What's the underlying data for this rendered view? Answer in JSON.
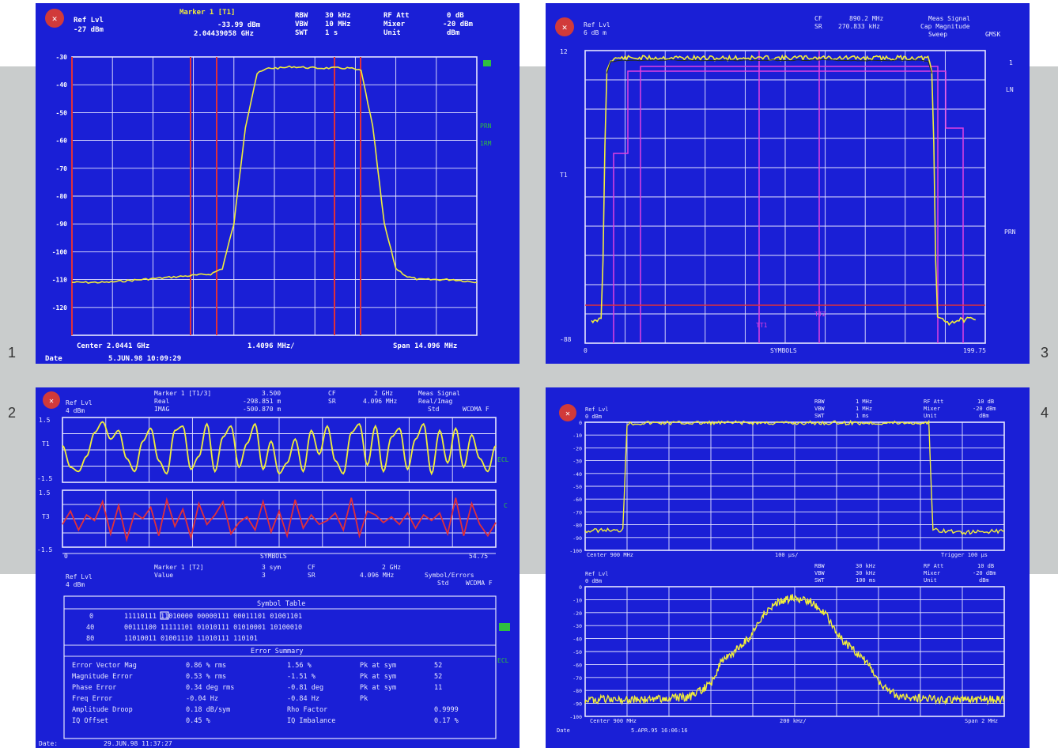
{
  "figure_numbers": [
    "1",
    "3",
    "2",
    "4"
  ],
  "colors": {
    "screen_bg": "#1a1fd6",
    "grid": "#e6e6ff",
    "trace_yellow": "#f2ee3a",
    "trace_red": "#e0303a",
    "trace_magenta": "#e040e0",
    "mark_green": "#2fbf3f"
  },
  "chart_data": [
    {
      "id": "screen1",
      "type": "line",
      "header": {
        "ref_lbl": "Ref Lvl",
        "ref_val": "-27 dBm",
        "marker_title": "Marker 1 [T1]",
        "marker_val1": "-33.99 dBm",
        "marker_val2": "2.04439058 GHz",
        "k1": "RBW",
        "v1": "30 kHz",
        "k2": "VBW",
        "v2": "10 MHz",
        "k3": "SWT",
        "v3": "1 s",
        "k4": "RF Att",
        "v4": "0 dB",
        "k5": "Mixer",
        "v5": "-20 dBm",
        "k6": "Unit",
        "v6": "dBm"
      },
      "yticks": [
        "-30",
        "-40",
        "-50",
        "-60",
        "-70",
        "-80",
        "-90",
        "-100",
        "-110",
        "-120"
      ],
      "ylim": [
        -130,
        -30
      ],
      "right_labels": [
        "PRN",
        "1RM"
      ],
      "footer": {
        "center": "Center 2.0441 GHz",
        "div": "1.4096 MHz/",
        "span": "Span 14.096 MHz",
        "date_lbl": "Date",
        "date_val": "5.JUN.98 10:09:29"
      },
      "x": [
        0,
        0.9,
        1.8,
        2.7,
        3.6,
        3.9,
        4.2,
        4.5,
        4.8,
        5.1,
        5.4,
        5.7,
        6.3,
        6.9,
        7.2,
        7.5,
        7.8,
        8.1,
        8.4,
        8.7,
        9.0,
        9.3,
        9.9,
        10.5
      ],
      "values": [
        -111,
        -111,
        -110,
        -109,
        -108,
        -106,
        -90,
        -55,
        -36,
        -34,
        -34,
        -33.5,
        -34,
        -34,
        -34,
        -35,
        -55,
        -90,
        -106,
        -109,
        -110,
        -110,
        -110,
        -111
      ]
    },
    {
      "id": "screen3",
      "type": "line",
      "header": {
        "ref_lbl": "Ref Lvl",
        "ref_val": "6 dB m",
        "cf_lbl": "CF",
        "cf_val": "890.2 MHz",
        "sr_lbl": "SR",
        "sr_val": "270.833 kHz",
        "r1": "Meas Signal",
        "r2": "Cap Magnitude",
        "r3": "Sweep",
        "mode": "GMSK"
      },
      "y_top": "12",
      "y_mid": "T1",
      "y_bottom": "-88",
      "right_labels": [
        "1",
        "LN",
        "PRN"
      ],
      "t_labels": [
        "TT1",
        "TT2"
      ],
      "footer": {
        "x_start": "0",
        "x_label": "SYMBOLS",
        "x_end": "199.75"
      },
      "x": [
        0,
        3,
        4,
        5,
        6,
        7,
        8,
        10,
        15,
        25,
        40,
        60,
        80,
        100,
        120,
        140,
        160,
        170,
        175,
        177,
        178,
        179,
        180,
        186,
        192,
        199.75
      ],
      "values": [
        -80,
        -81,
        -79,
        -80,
        -60,
        -20,
        5,
        9,
        9.5,
        9.5,
        9.6,
        9.4,
        9.5,
        9.5,
        9.6,
        9.4,
        9.5,
        9.5,
        9.3,
        5,
        -20,
        -60,
        -79,
        -81,
        -80,
        -80
      ]
    },
    {
      "id": "screen2",
      "type": "line",
      "header": {
        "ref_lbl": "Ref Lvl",
        "ref_val": "4 dBm",
        "marker_title": "Marker 1 [T1/3]",
        "m_row2": "Real",
        "m_row3": "IMAG",
        "m_val1": "3.500",
        "m_val2": "-298.851 m",
        "m_val3": "-500.870 m",
        "cf_lbl": "CF",
        "cf_val": "2 GHz",
        "sr_lbl": "SR",
        "sr_val": "4.096 MHz",
        "r1": "Meas Signal",
        "r2": "Real/Imag",
        "r3": "Std",
        "r4": "WCDMA F"
      },
      "top_ticks": [
        "1.5",
        "T1",
        "-1.5"
      ],
      "bot_ticks": [
        "1.5",
        "T3",
        "-1.5"
      ],
      "right_labels": [
        "ECL",
        "C",
        "ECL"
      ],
      "axis": {
        "x_start": "0",
        "x_label": "SYMBOLS",
        "x_end": "54.75"
      },
      "series": [
        {
          "name": "Real",
          "values": [
            0.2,
            -0.8,
            -1.0,
            -0.3,
            0.8,
            1.3,
            0.5,
            0.9,
            -0.4,
            -1.0,
            0.4,
            1.0,
            -0.5,
            -1.1,
            0.9,
            1.1,
            -0.9,
            -0.3,
            1.2,
            -1.0,
            0.6,
            1.1,
            -0.8,
            0.3,
            1.2,
            -0.9,
            0.4,
            -1.1,
            -0.6,
            0.5,
            -1.0,
            0.9,
            -0.2,
            1.1,
            -0.5,
            -1.1,
            0.8,
            1.2,
            -0.7,
            1.1,
            -1.0,
            0.6,
            1.0,
            -0.9,
            0.5,
            1.2,
            -1.1,
            0.9,
            -0.6,
            1.0,
            -0.8,
            0.7,
            -0.4,
            -1.0,
            0.2
          ]
        },
        {
          "name": "Imag",
          "values": [
            -0.3,
            0.4,
            -0.6,
            0.2,
            -0.1,
            0.9,
            -0.8,
            0.7,
            -1.1,
            0.3,
            0.0,
            0.6,
            -0.9,
            1.0,
            -0.4,
            0.5,
            -1.0,
            0.8,
            -0.3,
            0.2,
            0.9,
            -0.8,
            -0.2,
            0.1,
            -0.6,
            0.9,
            -0.7,
            0.4,
            -0.9,
            1.0,
            -0.5,
            0.2,
            -0.3,
            -0.1,
            0.3,
            -0.6,
            1.1,
            -0.9,
            0.4,
            0.2,
            -0.2,
            0.1,
            -0.3,
            0.3,
            -0.5,
            0.2,
            -0.1,
            0.3,
            -0.8,
            1.1,
            -0.9,
            0.8,
            -0.3,
            -0.9,
            -0.2
          ]
        }
      ],
      "marker2": {
        "ref_lbl": "Ref Lvl",
        "ref_val": "4 dBm",
        "title": "Marker 1 [T2]",
        "row2": "Value",
        "val1": "3 sym",
        "val2": "3",
        "cf_lbl": "CF",
        "cf_val": "2 GHz",
        "sr_lbl": "SR",
        "sr_val": "4.096 MHz",
        "r1": "Symbol/Errors",
        "r2": "Std",
        "r3": "WCDMA F"
      },
      "symbol_table": {
        "title": "Symbol Table",
        "rows": [
          {
            "idx": "0",
            "bits": "11110111 11010000 00000111 00011101 01001101"
          },
          {
            "idx": "40",
            "bits": "00111100 11111101 01010111 01010001 10100010"
          },
          {
            "idx": "80",
            "bits": "11010011 01001110 11010111 110101"
          }
        ]
      },
      "error_summary": {
        "title": "Error Summary",
        "rows": [
          {
            "name": "Error Vector Mag",
            "v1": "0.86 % rms",
            "v2": "1.56 %",
            "pk": "Pk at sym",
            "sym": "52"
          },
          {
            "name": "Magnitude Error",
            "v1": "0.53 % rms",
            "v2": "-1.51 %",
            "pk": "Pk at sym",
            "sym": "52"
          },
          {
            "name": "Phase Error",
            "v1": "0.34 deg rms",
            "v2": "-0.81 deg",
            "pk": "Pk at sym",
            "sym": "11"
          },
          {
            "name": "Freq Error",
            "v1": "-0.04 Hz",
            "v2": "-0.84 Hz",
            "pk": "Pk",
            "sym": ""
          },
          {
            "name": "Amplitude Droop",
            "v1": "0.18 dB/sym",
            "v2": "Rho Factor",
            "pk": "",
            "sym": "0.9999"
          },
          {
            "name": "IQ Offset",
            "v1": "0.45 %",
            "v2": "IQ Imbalance",
            "pk": "",
            "sym": "0.17 %"
          }
        ]
      },
      "footer": {
        "date_lbl": "Date:",
        "date_val": "29.JUN.98 11:37:27"
      }
    },
    {
      "id": "screen4",
      "type": "line",
      "header_top": {
        "ref_lbl": "Ref Lvl",
        "ref_val": "0 dBm",
        "k1": "RBW",
        "v1": "1 MHz",
        "k2": "VBW",
        "v2": "1 MHz",
        "k3": "SWT",
        "v3": "1 ms",
        "k4": "RF Att",
        "v4": "10 dB",
        "k5": "Mixer",
        "v5": "-20 dBm",
        "k6": "Unit",
        "v6": "dBm"
      },
      "yticks": [
        "0",
        "-10",
        "-20",
        "-30",
        "-40",
        "-50",
        "-60",
        "-70",
        "-80",
        "-90",
        "-100"
      ],
      "ylim": [
        -100,
        0
      ],
      "footer_top": {
        "center": "Center 900 MHz",
        "div": "100 µs/",
        "trigger": "Trigger 100 µs"
      },
      "time_x": [
        0,
        0.05,
        0.08,
        0.09,
        0.1,
        0.14,
        0.2,
        0.3,
        0.4,
        0.5,
        0.6,
        0.7,
        0.75,
        0.8,
        0.82,
        0.83,
        0.9,
        1.0
      ],
      "time_values": [
        -85,
        -84,
        -85,
        -83,
        -1,
        -0.6,
        -0.5,
        -0.6,
        -0.5,
        -0.6,
        -0.5,
        -0.6,
        -0.5,
        -0.6,
        -0.5,
        -84,
        -86,
        -85
      ],
      "header_bot": {
        "ref_lbl": "Ref Lvl",
        "ref_val": "0 dBm",
        "k1": "RBW",
        "v1": "30 kHz",
        "k2": "VBW",
        "v2": "30 kHz",
        "k3": "SWT",
        "v3": "100 ms",
        "k4": "RF Att",
        "v4": "10 dB",
        "k5": "Mixer",
        "v5": "-20 dBm",
        "k6": "Unit",
        "v6": "dBm"
      },
      "spec_x": [
        -1.0,
        -0.7,
        -0.5,
        -0.4,
        -0.35,
        -0.3,
        -0.22,
        -0.15,
        -0.08,
        0,
        0.08,
        0.15,
        0.22,
        0.3,
        0.35,
        0.4,
        0.5,
        0.7,
        1.0
      ],
      "spec_values": [
        -87,
        -87,
        -85,
        -75,
        -58,
        -52,
        -40,
        -22,
        -12,
        -8,
        -12,
        -22,
        -40,
        -52,
        -58,
        -75,
        -85,
        -87,
        -87
      ],
      "footer_bot": {
        "center": "Center 900 MHz",
        "div": "200 kHz/",
        "span": "Span 2 MHz",
        "date_lbl": "Date",
        "date_val": "5.APR.95 16:06:16"
      }
    }
  ]
}
